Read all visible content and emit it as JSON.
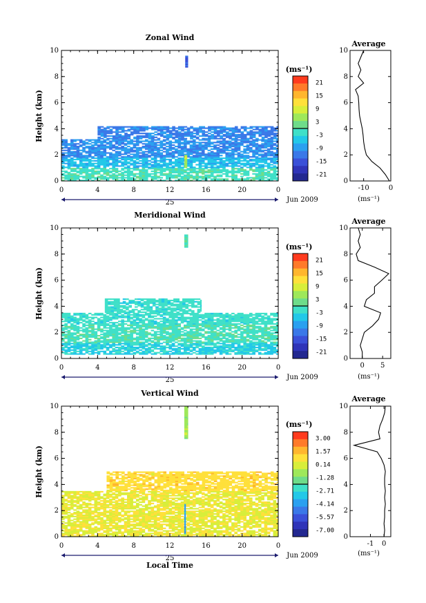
{
  "figure": {
    "date_label": "Jun 2009",
    "day_label": "25",
    "xlabel": "Local Time",
    "ylabel": "Height (km)",
    "unit_label": "(ms⁻¹)",
    "avg_title": "Average"
  },
  "chart_data": [
    {
      "type": "heatmap",
      "title": "Zonal Wind",
      "xlabel": "",
      "ylabel": "Height (km)",
      "x_ticks": [
        "0",
        "4",
        "8",
        "12",
        "16",
        "20",
        "0"
      ],
      "x_range_hours": [
        0,
        24
      ],
      "y_ticks": [
        "0",
        "2",
        "4",
        "6",
        "8",
        "10"
      ],
      "ylim": [
        0,
        10
      ],
      "colorbar": {
        "ticks": [
          "21",
          "15",
          "9",
          "3",
          "-3",
          "-9",
          "-15",
          "-21"
        ],
        "range": [
          -24,
          24
        ],
        "colors": [
          "#ff3b1e",
          "#ff7a2a",
          "#ffb62e",
          "#ffe03a",
          "#d8ee3a",
          "#9ee85a",
          "#6edc8a",
          "#3fe0c8",
          "#22c8e8",
          "#2aa0f0",
          "#3a78e8",
          "#3a50d8",
          "#2f34b8",
          "#232890"
        ]
      },
      "dominant_value": -8,
      "regions": [
        {
          "x0": 0,
          "x1": 24,
          "y0": 0.0,
          "y1": 1.0,
          "v": -1
        },
        {
          "x0": 0,
          "x1": 24,
          "y0": 1.0,
          "y1": 1.8,
          "v": -6
        },
        {
          "x0": 0,
          "x1": 24,
          "y0": 1.8,
          "y1": 3.2,
          "v": -10
        },
        {
          "x0": 4,
          "x1": 24,
          "y0": 3.2,
          "y1": 4.2,
          "v": -11
        },
        {
          "x0": 13.7,
          "x1": 14.0,
          "y0": 8.7,
          "y1": 9.6,
          "v": -14
        },
        {
          "x0": 13.6,
          "x1": 13.9,
          "y0": 1.0,
          "y1": 2.0,
          "v": 6
        }
      ],
      "average_profile": {
        "xlim": [
          -15,
          0
        ],
        "x_ticks": [
          "-10",
          "0"
        ],
        "xlabel": "(ms⁻¹)",
        "heights": [
          0,
          0.5,
          1,
          1.5,
          2,
          2.5,
          3,
          3.5,
          4,
          4.5,
          5,
          5.5,
          6,
          6.5,
          7,
          7.5,
          8,
          8.5,
          9,
          9.5,
          10
        ],
        "values": [
          -0.5,
          -2,
          -4,
          -7,
          -9,
          -9.6,
          -10,
          -10.2,
          -10.5,
          -11,
          -11.5,
          -11.7,
          -11.8,
          -12,
          -13,
          -10,
          -12,
          -11,
          -12,
          -11,
          -10
        ]
      }
    },
    {
      "type": "heatmap",
      "title": "Meridional Wind",
      "xlabel": "",
      "ylabel": "Height (km)",
      "x_ticks": [
        "0",
        "4",
        "8",
        "12",
        "16",
        "20",
        "0"
      ],
      "x_range_hours": [
        0,
        24
      ],
      "y_ticks": [
        "0",
        "2",
        "4",
        "6",
        "8",
        "10"
      ],
      "ylim": [
        0,
        10
      ],
      "colorbar": {
        "ticks": [
          "21",
          "15",
          "9",
          "3",
          "-3",
          "-9",
          "-15",
          "-21"
        ],
        "range": [
          -24,
          24
        ],
        "colors": [
          "#ff3b1e",
          "#ff7a2a",
          "#ffb62e",
          "#ffe03a",
          "#d8ee3a",
          "#9ee85a",
          "#6edc8a",
          "#3fe0c8",
          "#22c8e8",
          "#2aa0f0",
          "#3a78e8",
          "#3a50d8",
          "#2f34b8",
          "#232890"
        ]
      },
      "dominant_value": -1,
      "regions": [
        {
          "x0": 0,
          "x1": 24,
          "y0": 0.3,
          "y1": 1.2,
          "v": -4
        },
        {
          "x0": 0,
          "x1": 24,
          "y0": 1.2,
          "y1": 2.6,
          "v": -1
        },
        {
          "x0": 0,
          "x1": 24,
          "y0": 2.6,
          "y1": 3.5,
          "v": -2
        },
        {
          "x0": 4.8,
          "x1": 15.5,
          "y0": 3.5,
          "y1": 4.6,
          "v": -2
        },
        {
          "x0": 13.6,
          "x1": 14.0,
          "y0": 8.5,
          "y1": 9.5,
          "v": 0
        }
      ],
      "average_profile": {
        "xlim": [
          -3,
          7
        ],
        "x_ticks": [
          "0",
          "5"
        ],
        "xlabel": "(ms⁻¹)",
        "heights": [
          0,
          0.5,
          1,
          1.5,
          2,
          2.5,
          3,
          3.5,
          4,
          4.5,
          5,
          5.5,
          6,
          6.5,
          7,
          7.5,
          8,
          8.5,
          9,
          9.5,
          10
        ],
        "values": [
          0,
          0,
          -0.5,
          0,
          0.5,
          2.5,
          4,
          4.5,
          0.5,
          1,
          3,
          3,
          4.8,
          6.5,
          3,
          -1,
          -1.5,
          -0.5,
          -1,
          -0.5,
          -1
        ]
      }
    },
    {
      "type": "heatmap",
      "title": "Vertical Wind",
      "xlabel": "Local Time",
      "ylabel": "Height (km)",
      "x_ticks": [
        "0",
        "4",
        "8",
        "12",
        "16",
        "20",
        "0"
      ],
      "x_range_hours": [
        0,
        24
      ],
      "y_ticks": [
        "0",
        "2",
        "4",
        "6",
        "8",
        "10"
      ],
      "ylim": [
        0,
        10
      ],
      "colorbar": {
        "ticks": [
          "3.00",
          "1.57",
          "0.14",
          "-1.28",
          "-2.71",
          "-4.14",
          "-5.57",
          "-7.00"
        ],
        "range": [
          -7.5,
          3.5
        ],
        "colors": [
          "#ff3b1e",
          "#ff7a2a",
          "#ffb62e",
          "#ffe03a",
          "#d8ee3a",
          "#9ee85a",
          "#6edc8a",
          "#3fe0c8",
          "#22c8e8",
          "#2aa0f0",
          "#3a78e8",
          "#3a50d8",
          "#2f34b8",
          "#232890"
        ]
      },
      "dominant_value": 0.6,
      "regions": [
        {
          "x0": 0,
          "x1": 24,
          "y0": 0.0,
          "y1": 3.5,
          "v": 0.3
        },
        {
          "x0": 5,
          "x1": 24,
          "y0": 3.5,
          "y1": 5.0,
          "v": 0.8
        },
        {
          "x0": 13.6,
          "x1": 14.0,
          "y0": 7.5,
          "y1": 10.0,
          "v": -0.8
        },
        {
          "x0": 13.6,
          "x1": 13.75,
          "y0": 0.2,
          "y1": 2.5,
          "v": -4
        }
      ],
      "average_profile": {
        "xlim": [
          -2.5,
          0.5
        ],
        "x_ticks": [
          "-1",
          "0"
        ],
        "xlabel": "(ms⁻¹)",
        "heights": [
          0,
          0.5,
          1,
          1.5,
          2,
          2.5,
          3,
          3.5,
          4,
          4.5,
          5,
          5.5,
          6,
          6.5,
          7,
          7.5,
          8,
          8.5,
          9,
          9.5,
          10
        ],
        "values": [
          0,
          0.05,
          0,
          0.05,
          0.05,
          0.1,
          0.05,
          0.1,
          0.05,
          0.05,
          0.1,
          0,
          -0.2,
          -0.5,
          -2.2,
          -0.3,
          -0.4,
          -0.3,
          -0.1,
          0.05,
          0.1
        ]
      }
    }
  ]
}
